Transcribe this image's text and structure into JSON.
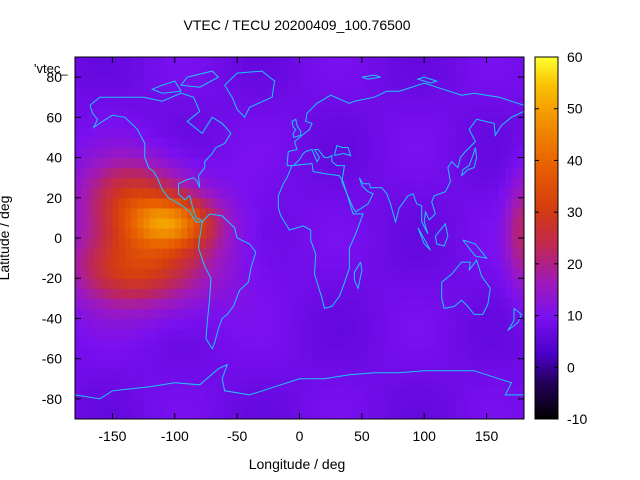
{
  "chart_data": {
    "type": "heatmap",
    "title": "VTEC / TECU 20200409_100.76500",
    "xlabel": "Longitude / deg",
    "ylabel": "Latitude / deg",
    "xlim": [
      -180,
      180
    ],
    "ylim": [
      -90,
      90
    ],
    "x_ticks": [
      -150,
      -100,
      -50,
      0,
      50,
      100,
      150
    ],
    "y_ticks": [
      -80,
      -60,
      -40,
      -20,
      0,
      20,
      40,
      60,
      80
    ],
    "colorbar": {
      "range": [
        -10,
        60
      ],
      "ticks": [
        -10,
        0,
        10,
        20,
        30,
        40,
        50,
        60
      ],
      "colormap": "gnuplot-pm3d (black-purple-red-orange-yellow)"
    },
    "annotation": "'vtec_",
    "background_value": 8,
    "hotspots": [
      {
        "lon": -102,
        "lat": 8,
        "lon_radius": 32,
        "lat_radius": 12,
        "peak": 23
      },
      {
        "lon": -135,
        "lat": 20,
        "lon_radius": 40,
        "lat_radius": 20,
        "peak": 17
      },
      {
        "lon": -140,
        "lat": -15,
        "lon_radius": 45,
        "lat_radius": 18,
        "peak": 15
      },
      {
        "lon": -110,
        "lat": -5,
        "lon_radius": 60,
        "lat_radius": 30,
        "peak": 12
      },
      {
        "lon": 178,
        "lat": 3,
        "lon_radius": 12,
        "lat_radius": 28,
        "peak": 13
      }
    ],
    "overlay": "coastlines (cyan)"
  }
}
